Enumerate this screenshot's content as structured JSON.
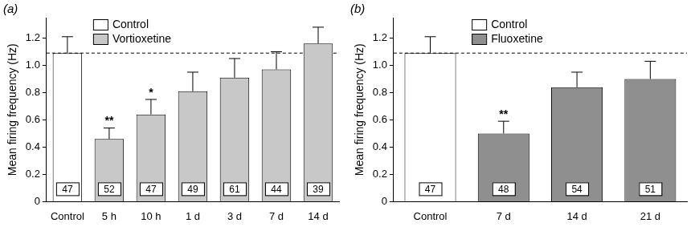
{
  "chart_data": [
    {
      "panel": "(a)",
      "type": "bar",
      "categories": [
        "Control",
        "5 h",
        "10 h",
        "1 d",
        "3 d",
        "7 d",
        "14 d"
      ],
      "series": [
        {
          "name": "Control",
          "color": "#ffffff",
          "values": [
            1.09,
            null,
            null,
            null,
            null,
            null,
            null
          ],
          "errors": [
            0.12,
            null,
            null,
            null,
            null,
            null,
            null
          ],
          "n": [
            47,
            null,
            null,
            null,
            null,
            null,
            null
          ],
          "significance": [
            null,
            null,
            null,
            null,
            null,
            null,
            null
          ]
        },
        {
          "name": "Vortioxetine",
          "color": "#c8c8c8",
          "values": [
            null,
            0.46,
            0.64,
            0.81,
            0.91,
            0.97,
            1.16
          ],
          "errors": [
            null,
            0.08,
            0.11,
            0.14,
            0.14,
            0.13,
            0.12
          ],
          "n": [
            null,
            52,
            47,
            49,
            61,
            44,
            39
          ],
          "significance": [
            null,
            "**",
            "*",
            null,
            null,
            null,
            null
          ]
        }
      ],
      "y_label": "Mean firing frequency (Hz)",
      "ylim": [
        0,
        1.35
      ],
      "yticks": [
        0,
        0.2,
        0.4,
        0.6,
        0.8,
        {
          "value": 1,
          "label": "1.0"
        },
        1.2
      ],
      "reference_line": 1.09,
      "legend": "upper left",
      "grid": false
    },
    {
      "panel": "(b)",
      "type": "bar",
      "categories": [
        "Control",
        "7 d",
        "14 d",
        "21 d"
      ],
      "series": [
        {
          "name": "Control",
          "color": "#ffffff",
          "values": [
            1.09,
            null,
            null,
            null
          ],
          "errors": [
            0.12,
            null,
            null,
            null
          ],
          "n": [
            47,
            null,
            null,
            null
          ],
          "significance": [
            null,
            null,
            null,
            null
          ]
        },
        {
          "name": "Fluoxetine",
          "color": "#8f8f8f",
          "values": [
            null,
            0.5,
            0.84,
            0.9
          ],
          "errors": [
            null,
            0.09,
            0.11,
            0.13
          ],
          "n": [
            null,
            48,
            54,
            51
          ],
          "significance": [
            null,
            "**",
            null,
            null
          ]
        }
      ],
      "y_label": "Mean firing frequency (Hz)",
      "ylim": [
        0,
        1.35
      ],
      "yticks": [
        0,
        0.2,
        0.4,
        0.6,
        0.8,
        {
          "value": 1,
          "label": "1.0"
        },
        1.2
      ],
      "reference_line": 1.09,
      "legend": "upper left",
      "grid": false
    }
  ]
}
